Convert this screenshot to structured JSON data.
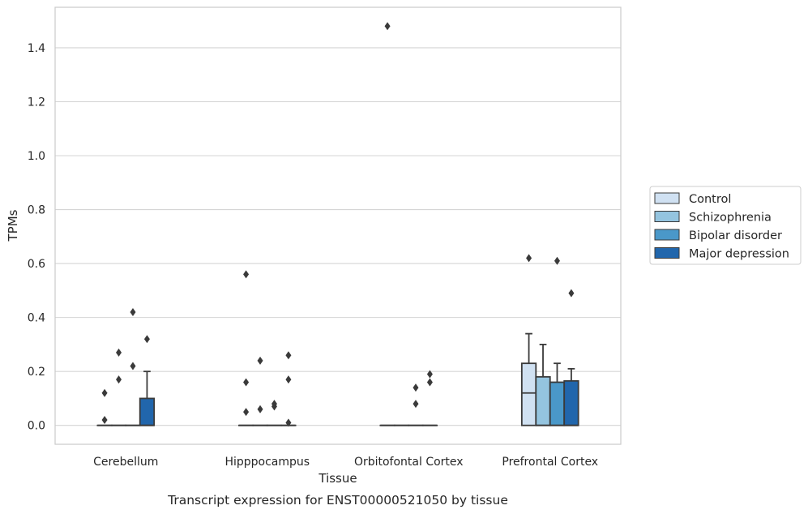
{
  "chart_data": {
    "type": "box",
    "xlabel": "Tissue",
    "ylabel": "TPMs",
    "caption": "Transcript expression for ENST00000521050 by tissue",
    "ylim": [
      -0.07,
      1.55
    ],
    "yticks": [
      "0.0",
      "0.2",
      "0.4",
      "0.6",
      "0.8",
      "1.0",
      "1.2",
      "1.4"
    ],
    "grid": "horizontal",
    "legend_position": "right",
    "categories": [
      "Cerebellum",
      "Hipppocampus",
      "Orbitofontal Cortex",
      "Prefrontal Cortex"
    ],
    "series": [
      {
        "name": "Control",
        "color": "#d0e1f2",
        "boxes": [
          {
            "q1": 0,
            "median": 0,
            "q3": 0,
            "whisker_low": 0,
            "whisker_high": 0,
            "outliers": [
              0.02,
              0.12
            ]
          },
          {
            "q1": 0,
            "median": 0,
            "q3": 0,
            "whisker_low": 0,
            "whisker_high": 0,
            "outliers": [
              0.05,
              0.16,
              0.56
            ]
          },
          {
            "q1": 0,
            "median": 0,
            "q3": 0,
            "whisker_low": 0,
            "whisker_high": 0,
            "outliers": [
              1.48
            ]
          },
          {
            "q1": 0,
            "median": 0.12,
            "q3": 0.23,
            "whisker_low": 0,
            "whisker_high": 0.34,
            "outliers": [
              0.62
            ]
          }
        ]
      },
      {
        "name": "Schizophrenia",
        "color": "#94c4df",
        "boxes": [
          {
            "q1": 0,
            "median": 0,
            "q3": 0,
            "whisker_low": 0,
            "whisker_high": 0,
            "outliers": [
              0.17,
              0.27
            ]
          },
          {
            "q1": 0,
            "median": 0,
            "q3": 0,
            "whisker_low": 0,
            "whisker_high": 0,
            "outliers": [
              0.06,
              0.24
            ]
          },
          {
            "q1": 0,
            "median": 0,
            "q3": 0,
            "whisker_low": 0,
            "whisker_high": 0,
            "outliers": []
          },
          {
            "q1": 0,
            "median": 0,
            "q3": 0.18,
            "whisker_low": 0,
            "whisker_high": 0.3,
            "outliers": []
          }
        ]
      },
      {
        "name": "Bipolar disorder",
        "color": "#4a98c9",
        "boxes": [
          {
            "q1": 0,
            "median": 0,
            "q3": 0,
            "whisker_low": 0,
            "whisker_high": 0,
            "outliers": [
              0.22,
              0.42
            ]
          },
          {
            "q1": 0,
            "median": 0,
            "q3": 0,
            "whisker_low": 0,
            "whisker_high": 0,
            "outliers": [
              0.07,
              0.08
            ]
          },
          {
            "q1": 0,
            "median": 0,
            "q3": 0,
            "whisker_low": 0,
            "whisker_high": 0,
            "outliers": [
              0.08,
              0.14
            ]
          },
          {
            "q1": 0,
            "median": 0,
            "q3": 0.16,
            "whisker_low": 0,
            "whisker_high": 0.23,
            "outliers": [
              0.61
            ]
          }
        ]
      },
      {
        "name": "Major depression",
        "color": "#2166ac",
        "boxes": [
          {
            "q1": 0,
            "median": 0,
            "q3": 0.1,
            "whisker_low": 0,
            "whisker_high": 0.2,
            "outliers": [
              0.32
            ]
          },
          {
            "q1": 0,
            "median": 0,
            "q3": 0,
            "whisker_low": 0,
            "whisker_high": 0,
            "outliers": [
              0.01,
              0.17,
              0.26
            ]
          },
          {
            "q1": 0,
            "median": 0,
            "q3": 0,
            "whisker_low": 0,
            "whisker_high": 0,
            "outliers": [
              0.16,
              0.19
            ]
          },
          {
            "q1": 0,
            "median": 0,
            "q3": 0.165,
            "whisker_low": 0,
            "whisker_high": 0.21,
            "outliers": [
              0.49
            ]
          }
        ]
      }
    ]
  }
}
